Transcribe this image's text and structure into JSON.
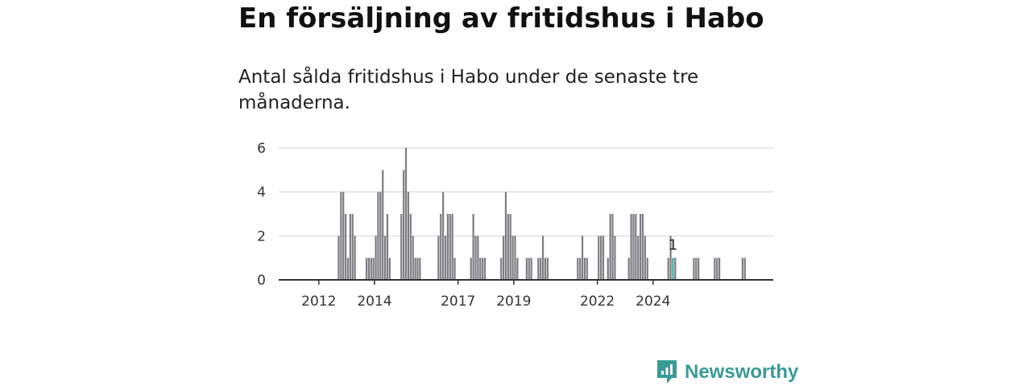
{
  "title": "En försäljning av fritidshus i Habo",
  "subtitle": "Antal sålda fritidshus i Habo under de senaste tre månaderna.",
  "brand": {
    "name": "Newsworthy",
    "icon": "newsworthy-logo-icon"
  },
  "colors": {
    "bar": "#7d7c82",
    "highlight": "#3aa6a2",
    "grid": "#d9d9d9",
    "axis": "#333333",
    "brand": "#3a9a96"
  },
  "chart_data": {
    "type": "bar",
    "ylim": [
      0,
      6
    ],
    "yticks": [
      0,
      2,
      4,
      6
    ],
    "xticks": [
      {
        "label": "2012",
        "date": "2012-01"
      },
      {
        "label": "2014",
        "date": "2014-01"
      },
      {
        "label": "2017",
        "date": "2017-01"
      },
      {
        "label": "2019",
        "date": "2019-01"
      },
      {
        "label": "2022",
        "date": "2022-01"
      },
      {
        "label": "2024",
        "date": "2024-01"
      }
    ],
    "grid": true,
    "start": "2011-07",
    "values": [
      0,
      0,
      0,
      0,
      0,
      0,
      0,
      0,
      0,
      0,
      0,
      0,
      0,
      0,
      2,
      4,
      4,
      3,
      1,
      3,
      3,
      2,
      0,
      0,
      0,
      0,
      1,
      1,
      1,
      1,
      2,
      4,
      4,
      5,
      2,
      3,
      1,
      0,
      0,
      0,
      0,
      3,
      5,
      6,
      4,
      3,
      2,
      1,
      1,
      1,
      0,
      0,
      0,
      0,
      0,
      0,
      0,
      2,
      3,
      4,
      2,
      3,
      3,
      3,
      1,
      0,
      0,
      0,
      0,
      0,
      0,
      1,
      3,
      2,
      2,
      1,
      1,
      1,
      0,
      0,
      0,
      0,
      0,
      0,
      1,
      2,
      4,
      3,
      3,
      2,
      2,
      1,
      0,
      0,
      0,
      1,
      1,
      1,
      0,
      0,
      1,
      1,
      2,
      1,
      1,
      0,
      0,
      0,
      0,
      0,
      0,
      0,
      0,
      0,
      0,
      0,
      0,
      1,
      1,
      2,
      1,
      1,
      0,
      0,
      0,
      0,
      2,
      2,
      2,
      0,
      1,
      3,
      3,
      2,
      0,
      0,
      0,
      0,
      0,
      1,
      3,
      3,
      3,
      2,
      3,
      3,
      2,
      1,
      0,
      0,
      0,
      0,
      0,
      0,
      0,
      0,
      1,
      2,
      1,
      1,
      0,
      0,
      0,
      0,
      0,
      0,
      0,
      1,
      1,
      1,
      0,
      0,
      0,
      0,
      0,
      0,
      1,
      1,
      1,
      0,
      0,
      0,
      0,
      0,
      0,
      0,
      0,
      0,
      1,
      1
    ],
    "highlight": {
      "date": "2024-09",
      "value": 1,
      "label": "1"
    }
  }
}
